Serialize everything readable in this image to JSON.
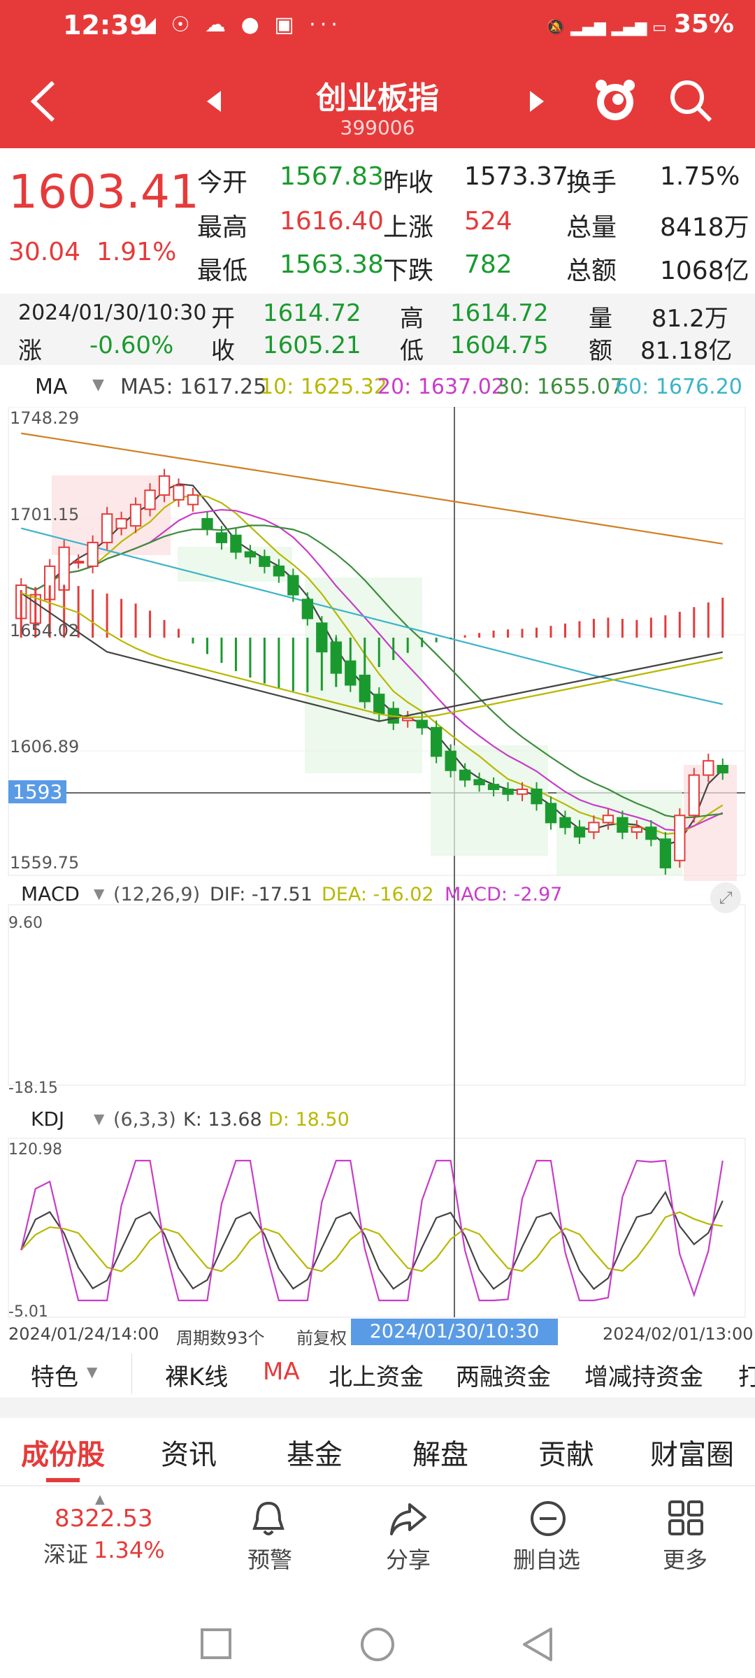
{
  "status_bar": {
    "time": "12:39",
    "battery": "35%",
    "signal": "46",
    "icons": "◢ ☉ ☁ ● ▣ ···"
  },
  "nav": {
    "title": "创业板指",
    "code": "399006"
  },
  "quote": {
    "price": "1603.41",
    "change": "30.04",
    "change_pct": "1.91%",
    "rows": [
      {
        "l1": "今开",
        "v1": "1567.83",
        "l2": "昨收",
        "v2": "1573.37",
        "l3": "换手",
        "v3": "1.75%"
      },
      {
        "l1": "最高",
        "v1": "1616.40",
        "l2": "上涨",
        "v2": "524",
        "l3": "总量",
        "v3": "8418万"
      },
      {
        "l1": "最低",
        "v1": "1563.38",
        "l2": "下跌",
        "v2": "782",
        "l3": "总额",
        "v3": "1068亿"
      }
    ]
  },
  "cursor_info": {
    "datetime": "2024/01/30/10:30",
    "rise_label": "涨",
    "rise": "-0.60%",
    "open_label": "开",
    "open": "1614.72",
    "close_label": "收",
    "close": "1605.21",
    "high_label": "高",
    "high": "1614.72",
    "low_label": "低",
    "low": "1604.75",
    "vol_label": "量",
    "vol": "81.2万",
    "amt_label": "额",
    "amt": "81.18亿"
  },
  "ma_legend": {
    "name": "MA",
    "ma5": "MA5: 1617.25",
    "ma10": "10: 1625.32",
    "ma20": "20: 1637.02",
    "ma30": "30: 1655.07",
    "ma60": "60: 1676.20"
  },
  "main_chart": {
    "y_labels": [
      "1748.29",
      "1701.15",
      "1654.02",
      "1606.89",
      "1559.75"
    ],
    "cursor_price": "1593"
  },
  "macd": {
    "name": "MACD",
    "params": "(12,26,9)",
    "dif": "DIF: -17.51",
    "dea": "DEA: -16.02",
    "macd": "MACD: -2.97",
    "ymax": "9.60",
    "ymin": "-18.15"
  },
  "kdj": {
    "name": "KDJ",
    "params": "(6,3,3)",
    "k": "K: 13.68",
    "d": "D: 18.50",
    "ymax": "120.98",
    "ymin": "-5.01"
  },
  "x_axis": {
    "start": "2024/01/24/14:00",
    "periods": "周期数93个",
    "adj": "前复权",
    "cursor": "2024/01/30/10:30",
    "end": "2024/02/01/13:00"
  },
  "tabs1": [
    "特色",
    "裸K线",
    "MA",
    "北上资金",
    "两融资金",
    "增减持资金",
    "打"
  ],
  "tabs2": [
    "成份股",
    "资讯",
    "基金",
    "解盘",
    "贡献",
    "财富圈"
  ],
  "bottom": {
    "index_value": "8322.53",
    "index_name": "深证",
    "index_pct": "1.34%",
    "items": [
      "预警",
      "分享",
      "删自选",
      "更多"
    ]
  },
  "colors": {
    "up": "#e63a3a",
    "down": "#1a9a2e",
    "ma5": "#444444",
    "ma10": "#b8b800",
    "ma20": "#c83cc8",
    "ma30": "#3c8c3c",
    "ma60": "#3cb4c8",
    "ma120": "#d08020"
  },
  "chart_data": {
    "type": "candlestick",
    "x_start": "2024/01/24/14:00",
    "x_end": "2024/02/01/13:00",
    "ylim": [
      1559.75,
      1748.29
    ],
    "candles": [
      [
        1668,
        1682
      ],
      [
        1666,
        1678
      ],
      [
        1676,
        1690
      ],
      [
        1680,
        1698
      ],
      [
        1692,
        1692
      ],
      [
        1690,
        1700
      ],
      [
        1700,
        1712
      ],
      [
        1706,
        1710
      ],
      [
        1707,
        1716
      ],
      [
        1714,
        1722
      ],
      [
        1720,
        1728
      ],
      [
        1718,
        1724
      ],
      [
        1716,
        1720
      ],
      [
        1710,
        1706
      ],
      [
        1704,
        1700
      ],
      [
        1703,
        1696
      ],
      [
        1696,
        1694
      ],
      [
        1694,
        1690
      ],
      [
        1690,
        1686
      ],
      [
        1686,
        1678
      ],
      [
        1676,
        1668
      ],
      [
        1666,
        1654
      ],
      [
        1658,
        1645
      ],
      [
        1650,
        1640
      ],
      [
        1644,
        1633
      ],
      [
        1636,
        1628
      ],
      [
        1630,
        1624
      ],
      [
        1625,
        1626
      ],
      [
        1625,
        1622
      ],
      [
        1622,
        1610
      ],
      [
        1612,
        1604
      ],
      [
        1604,
        1600
      ],
      [
        1600,
        1598
      ],
      [
        1598,
        1596
      ],
      [
        1596,
        1594
      ],
      [
        1594,
        1596
      ],
      [
        1596,
        1590
      ],
      [
        1590,
        1582
      ],
      [
        1584,
        1580
      ],
      [
        1580,
        1576
      ],
      [
        1578,
        1582
      ],
      [
        1582,
        1585
      ],
      [
        1584,
        1578
      ],
      [
        1578,
        1580
      ],
      [
        1580,
        1575
      ],
      [
        1575,
        1563
      ],
      [
        1566,
        1585
      ],
      [
        1585,
        1602
      ],
      [
        1602,
        1608
      ],
      [
        1606,
        1603
      ]
    ],
    "macd": [
      8.1,
      8.6,
      8.9,
      9.0,
      8.8,
      8.2,
      7.5,
      6.6,
      5.8,
      4.6,
      3.0,
      1.5,
      -1.0,
      -2.8,
      -4.3,
      -5.7,
      -6.8,
      -7.8,
      -8.6,
      -9.1,
      -9.3,
      -9.0,
      -8.4,
      -7.5,
      -6.3,
      -5.0,
      -3.8,
      -2.6,
      -1.6,
      -0.8,
      -0.2,
      0.4,
      0.8,
      1.2,
      1.4,
      1.5,
      1.7,
      2.0,
      2.4,
      2.8,
      3.2,
      3.4,
      3.2,
      3.0,
      3.4,
      3.8,
      4.4,
      5.2,
      6.0,
      6.8
    ]
  }
}
